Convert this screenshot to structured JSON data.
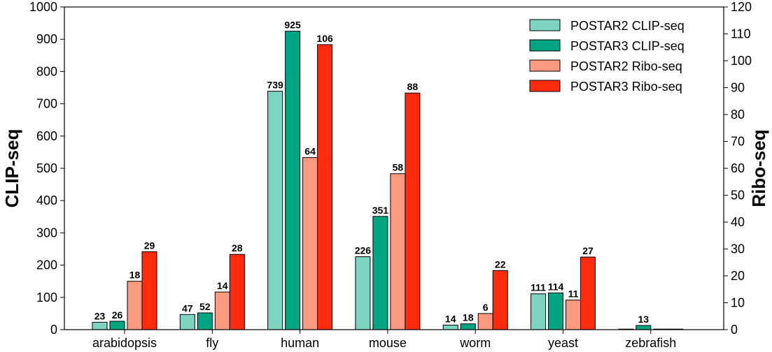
{
  "chart_data": {
    "type": "bar",
    "categories": [
      "arabidopsis",
      "fly",
      "human",
      "mouse",
      "worm",
      "yeast",
      "zebrafish"
    ],
    "ylabel_left": "CLIP-seq",
    "ylabel_right": "Ribo-seq",
    "ylim_left": [
      0,
      1000
    ],
    "ylim_right": [
      0,
      120
    ],
    "yticks_left": [
      "0",
      "100",
      "200",
      "300",
      "400",
      "500",
      "600",
      "700",
      "800",
      "900",
      "1000"
    ],
    "yticks_right": [
      "0",
      "10",
      "20",
      "30",
      "40",
      "50",
      "60",
      "70",
      "80",
      "90",
      "100",
      "110",
      "120"
    ],
    "grid": false,
    "legend_position": "top-right",
    "series": [
      {
        "name": "POSTAR2 CLIP-seq",
        "axis": "left",
        "color": "#7dd4c0",
        "values": [
          23,
          47,
          739,
          226,
          14,
          111,
          0
        ],
        "labels": [
          "23",
          "47",
          "739",
          "226",
          "14",
          "111",
          ""
        ]
      },
      {
        "name": "POSTAR3 CLIP-seq",
        "axis": "left",
        "color": "#00a583",
        "values": [
          26,
          52,
          925,
          351,
          18,
          114,
          13
        ],
        "labels": [
          "26",
          "52",
          "925",
          "351",
          "18",
          "114",
          "13"
        ]
      },
      {
        "name": "POSTAR2 Ribo-seq",
        "axis": "right",
        "color": "#fc9a80",
        "values": [
          18,
          14,
          64,
          58,
          6,
          11,
          0
        ],
        "labels": [
          "18",
          "14",
          "64",
          "58",
          "6",
          "11",
          ""
        ]
      },
      {
        "name": "POSTAR3 Ribo-seq",
        "axis": "right",
        "color": "#ff2b0f",
        "values": [
          29,
          28,
          106,
          88,
          22,
          27,
          0
        ],
        "labels": [
          "29",
          "28",
          "106",
          "88",
          "22",
          "27",
          ""
        ]
      }
    ]
  }
}
